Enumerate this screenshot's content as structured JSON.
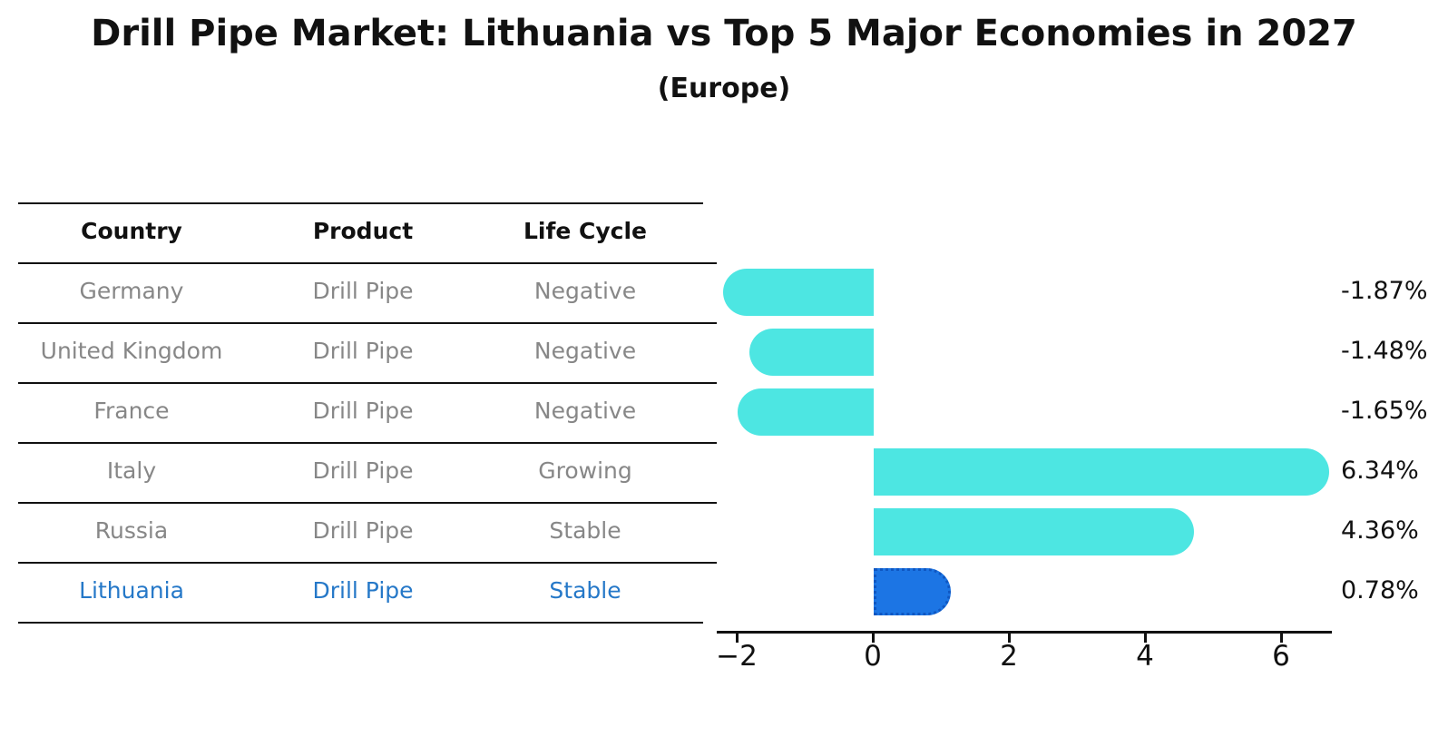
{
  "chart_data": {
    "type": "bar",
    "orientation": "horizontal",
    "title": "Drill Pipe Market: Lithuania vs Top 5 Major Economies in 2027",
    "subtitle": "(Europe)",
    "categories": [
      "Germany",
      "United Kingdom",
      "France",
      "Italy",
      "Russia",
      "Lithuania"
    ],
    "values": [
      -1.87,
      -1.48,
      -1.65,
      6.34,
      4.36,
      0.78
    ],
    "value_labels": [
      "-1.87%",
      "-1.48%",
      "-1.65%",
      "6.34%",
      "4.36%",
      "0.78%"
    ],
    "xticks": [
      -2,
      0,
      2,
      4,
      6
    ],
    "xtick_labels": [
      "−2",
      "0",
      "2",
      "4",
      "6"
    ],
    "xlim": [
      -2.3,
      6.75
    ],
    "grid": false,
    "legend": false,
    "highlight_index": 5,
    "colors": {
      "bar": "#4DE6E2",
      "highlight_bar": "#1C75E4",
      "highlight_border": "#0F57C2",
      "highlight_text": "#2578C8",
      "row_text": "#878787",
      "axis": "#111111"
    }
  },
  "table": {
    "headers": [
      "Country",
      "Product",
      "Life Cycle"
    ],
    "rows": [
      {
        "country": "Germany",
        "product": "Drill Pipe",
        "life_cycle": "Negative",
        "highlighted": false
      },
      {
        "country": "United Kingdom",
        "product": "Drill Pipe",
        "life_cycle": "Negative",
        "highlighted": false
      },
      {
        "country": "France",
        "product": "Drill Pipe",
        "life_cycle": "Negative",
        "highlighted": false
      },
      {
        "country": "Italy",
        "product": "Drill Pipe",
        "life_cycle": "Growing",
        "highlighted": false
      },
      {
        "country": "Russia",
        "product": "Drill Pipe",
        "life_cycle": "Stable",
        "highlighted": false
      },
      {
        "country": "Lithuania",
        "product": "Drill Pipe",
        "life_cycle": "Stable",
        "highlighted": true
      }
    ]
  }
}
